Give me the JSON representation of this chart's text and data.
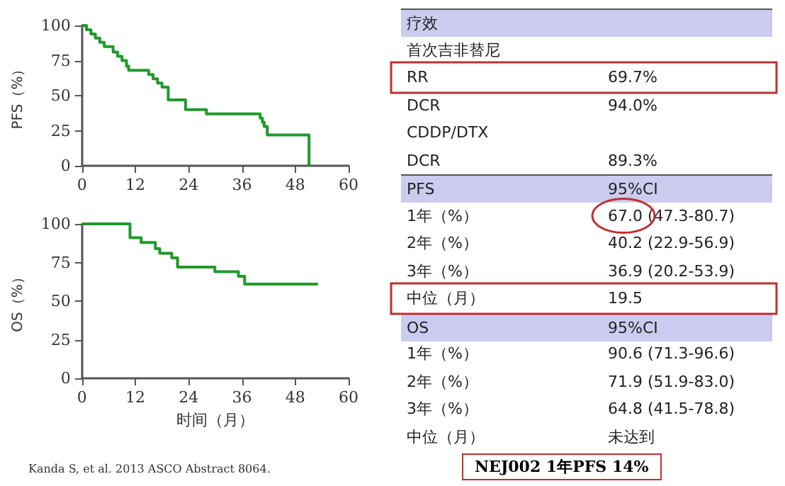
{
  "chart_data": [
    {
      "type": "step",
      "ylabel": "PFS（%）",
      "xlim": [
        0,
        60
      ],
      "xticks": [
        0,
        12,
        24,
        36,
        48,
        60
      ],
      "ylim": [
        0,
        100
      ],
      "yticks": [
        0,
        25,
        50,
        75,
        100
      ],
      "x": [
        0,
        1,
        2,
        3,
        4,
        5,
        7,
        8,
        9,
        10,
        10.5,
        15,
        16,
        17,
        18,
        19.4,
        23.3,
        28,
        40.1,
        40.6,
        41,
        41.7,
        51.1,
        51.1
      ],
      "series": [
        {
          "color": "#1f9a2a",
          "values": [
            100,
            97,
            94,
            91,
            88,
            85,
            81,
            78,
            75,
            71,
            68,
            65,
            62,
            59,
            56,
            47,
            40,
            37,
            34,
            31,
            28,
            22,
            22,
            0
          ]
        }
      ]
    },
    {
      "type": "step",
      "ylabel": "OS（%）",
      "xlabel": "时间（月）",
      "xlim": [
        0,
        60
      ],
      "xticks": [
        0,
        12,
        24,
        36,
        48,
        60
      ],
      "ylim": [
        0,
        100
      ],
      "yticks": [
        0,
        25,
        50,
        75,
        100
      ],
      "x": [
        0,
        10.8,
        13.3,
        16.5,
        17.5,
        20.2,
        21.5,
        29.9,
        35.2,
        36.6,
        53.1
      ],
      "series": [
        {
          "color": "#1f9a2a",
          "values": [
            100,
            91,
            88,
            84,
            81,
            78,
            72,
            69,
            66,
            61,
            61
          ]
        }
      ],
      "annotations": [
        "Kanda S, et al. 2013 ASCO Abstract 8064."
      ]
    },
    {
      "type": "other",
      "categories": [
        "疗效",
        "首次吉非替尼",
        "RR",
        "DCR",
        "CDDP/DTX",
        "DCR",
        "PFS",
        "1年（%）",
        "2年（%）",
        "3年（%）",
        "中位（月）",
        "OS",
        "1年（%）",
        "2年（%）",
        "3年（%）",
        "中位（月）"
      ],
      "value_labels": [
        null,
        null,
        "69.7%",
        "94.0%",
        null,
        "89.3%",
        "95%CI",
        "67.0 (47.3-80.7)",
        "40.2 (22.9-56.9)",
        "36.9 (20.2-53.9)",
        "19.5",
        "95%CI",
        "90.6 (71.3-96.6)",
        "71.9 (51.9-83.0)",
        "64.8 (41.5-78.8)",
        "未达到"
      ],
      "colors": [
        "#ccccf0",
        null,
        null,
        null,
        null,
        null,
        "#ccccf0",
        null,
        null,
        null,
        null,
        "#ccccf0",
        null,
        null,
        null,
        null
      ],
      "annotations": [
        "NEJ002 1年PFS 14%"
      ]
    }
  ]
}
